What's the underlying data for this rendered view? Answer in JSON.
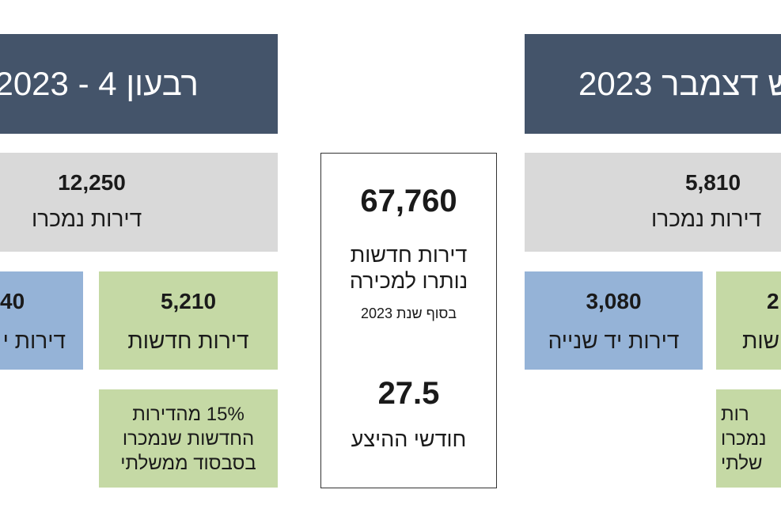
{
  "left": {
    "header": "רבעון 4 - 2023",
    "total": {
      "value": "12,250",
      "label": "דירות נמכרו"
    },
    "new": {
      "value": "5,210",
      "label": "דירות חדשות"
    },
    "second_hand": {
      "value": "40",
      "label": "דירות י"
    },
    "subsidy_note": "15% מהדירות\nהחדשות שנמכרו\nבסבסוד ממשלתי"
  },
  "center": {
    "remaining_value": "67,760",
    "remaining_label": "דירות חדשות\nנותרו למכירה",
    "remaining_sub": "בסוף שנת 2023",
    "months_value": "27.5",
    "months_label": "חודשי ההיצע"
  },
  "right": {
    "header": "ש דצמבר 2023",
    "total": {
      "value": "5,810",
      "label": "דירות נמכרו"
    },
    "second_hand": {
      "value": "3,080",
      "label": "דירות יד שנייה"
    },
    "new": {
      "value": "2",
      "label": "שות"
    },
    "subsidy_note": "רות\nנמכרו\nשלתי"
  }
}
